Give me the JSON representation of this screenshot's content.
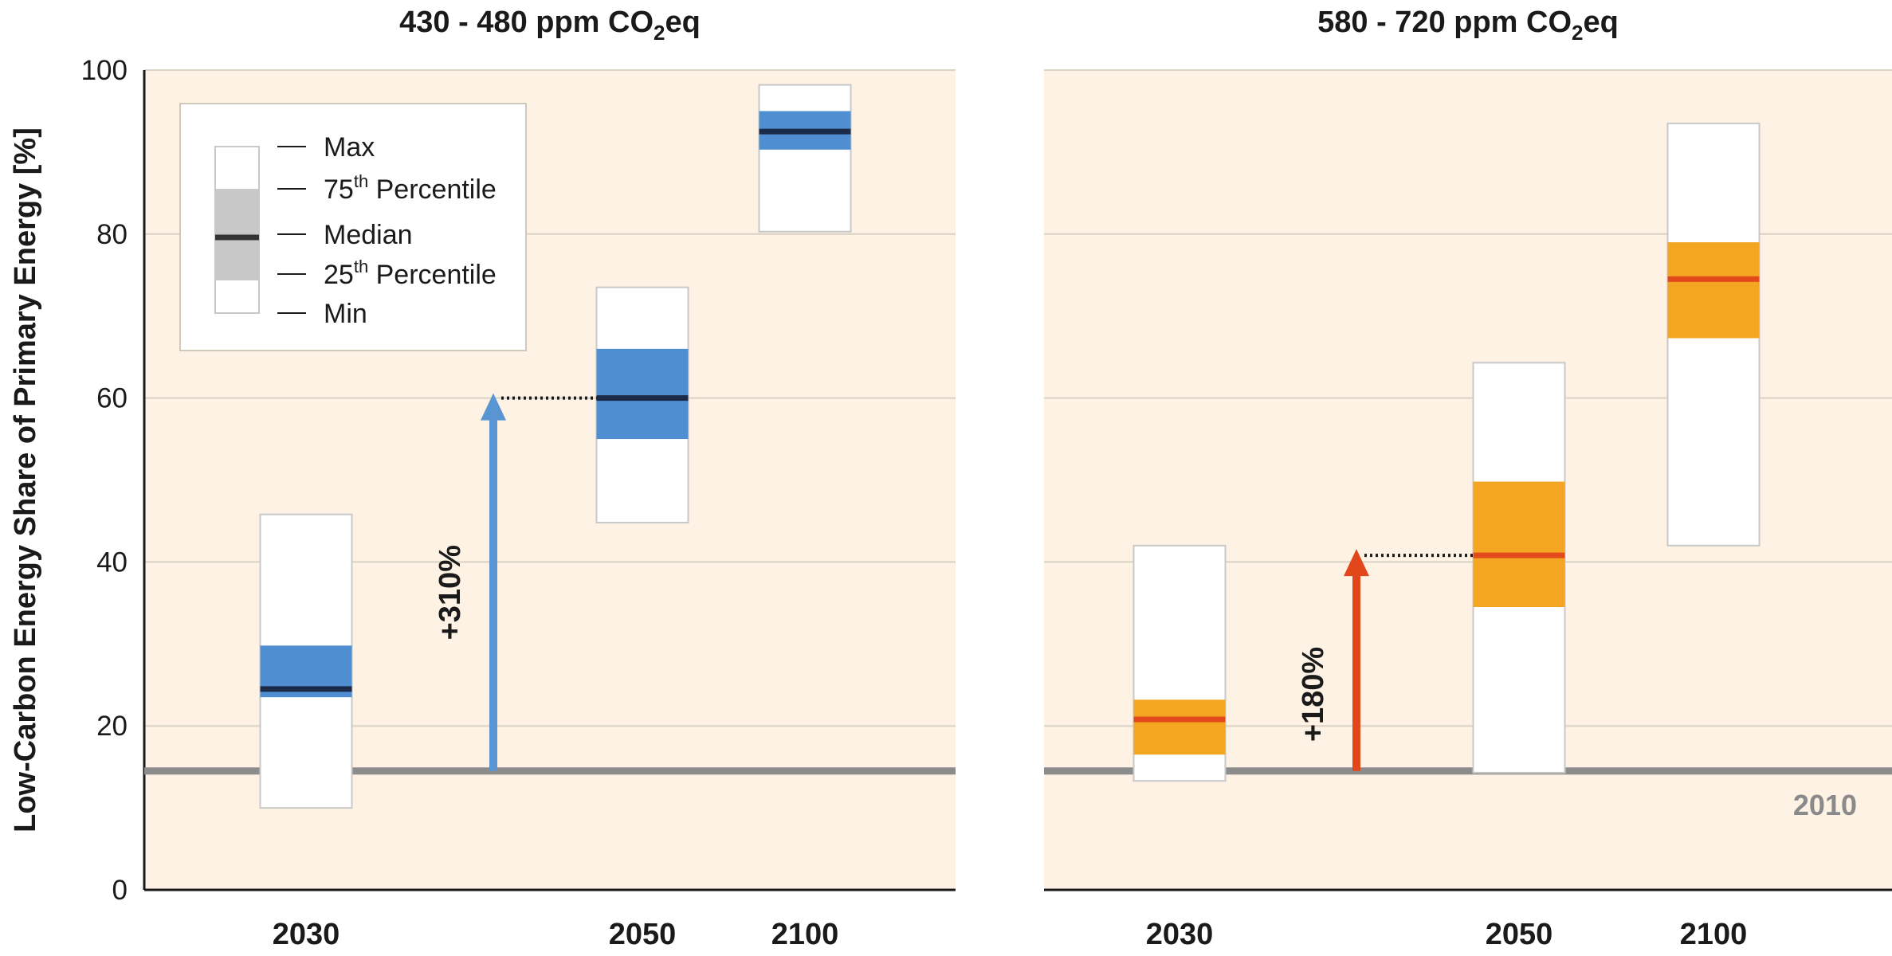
{
  "chart_data": {
    "type": "box",
    "ylabel": "Low-Carbon Energy Share of Primary Energy [%]",
    "ylim": [
      0,
      100
    ],
    "yticks": [
      "0",
      "20",
      "40",
      "60",
      "80",
      "100"
    ],
    "grid": true,
    "baseline": {
      "label": "2010",
      "value": 14.5,
      "color": "#8c8c8c"
    },
    "legend": {
      "placement": "top-left",
      "entries": [
        {
          "text": "Max"
        },
        {
          "text": "75",
          "sup": "th",
          "rest": " Percentile"
        },
        {
          "text": "Median"
        },
        {
          "text": "25",
          "sup": "th",
          "rest": " Percentile"
        },
        {
          "text": "Min"
        }
      ]
    },
    "panels": [
      {
        "title_main": "430 - 480 ppm CO",
        "title_sub": "2",
        "title_tail": "eq",
        "fill_color": "#4f8fd1",
        "median_color": "#1b2a47",
        "arrow_color": "#5a95d3",
        "arrow": {
          "label": "+310%",
          "from": 14.5,
          "to": 60
        },
        "categories": [
          "2030",
          "2050",
          "2100"
        ],
        "boxes": [
          {
            "category": "2030",
            "min": 10,
            "q1": 23.5,
            "median": 24.5,
            "q3": 29.8,
            "max": 45.8
          },
          {
            "category": "2050",
            "min": 44.8,
            "q1": 55,
            "median": 60,
            "q3": 66,
            "max": 73.5
          },
          {
            "category": "2100",
            "min": 80.3,
            "q1": 90.3,
            "median": 92.5,
            "q3": 95,
            "max": 98.2
          }
        ]
      },
      {
        "title_main": "580 - 720 ppm CO",
        "title_sub": "2",
        "title_tail": "eq",
        "fill_color": "#f4a623",
        "median_color": "#e24a1c",
        "arrow_color": "#e2461b",
        "arrow": {
          "label": "+180%",
          "from": 14.5,
          "to": 41
        },
        "categories": [
          "2030",
          "2050",
          "2100"
        ],
        "boxes": [
          {
            "category": "2030",
            "min": 13.3,
            "q1": 16.5,
            "median": 20.8,
            "q3": 23.2,
            "max": 42
          },
          {
            "category": "2050",
            "min": 14.3,
            "q1": 34.5,
            "median": 40.8,
            "q3": 49.8,
            "max": 64.3
          },
          {
            "category": "2100",
            "min": 42,
            "q1": 67.3,
            "median": 74.5,
            "q3": 79,
            "max": 93.5
          }
        ]
      }
    ]
  }
}
